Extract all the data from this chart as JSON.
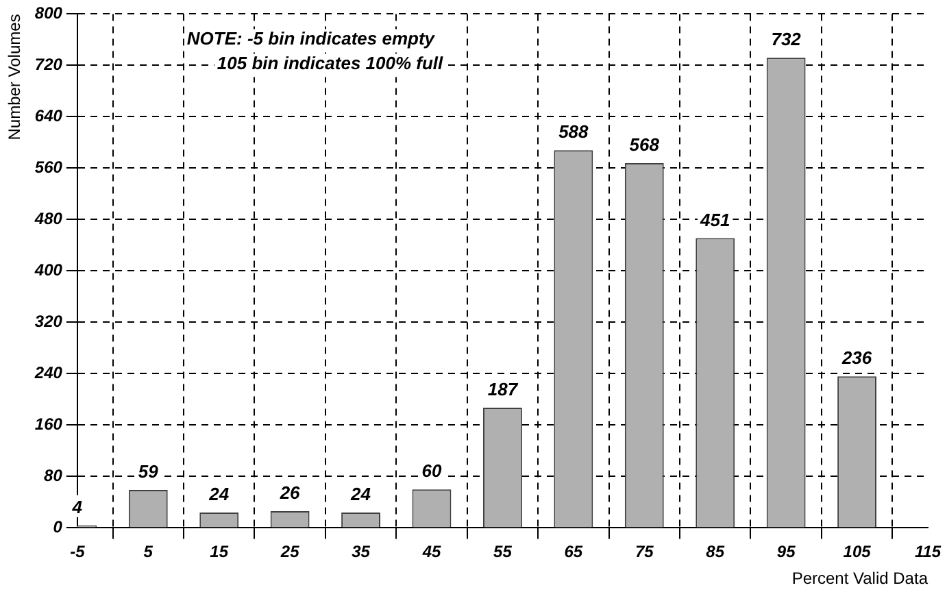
{
  "chart_data": {
    "type": "bar",
    "xlabel": "Percent Valid Data",
    "ylabel": "Number Volumes",
    "annotations": [
      "NOTE: -5 bin indicates empty",
      "105 bin indicates 100% full"
    ],
    "x": [
      -5,
      5,
      15,
      25,
      35,
      45,
      55,
      65,
      75,
      85,
      95,
      105
    ],
    "values": [
      4,
      59,
      24,
      26,
      24,
      60,
      187,
      588,
      568,
      451,
      732,
      236
    ],
    "color": "#b0b0b0",
    "xlim": [
      -5,
      115
    ],
    "xticks": [
      -5,
      5,
      15,
      25,
      35,
      45,
      55,
      65,
      75,
      85,
      95,
      105,
      115
    ],
    "ylim": [
      0,
      800
    ],
    "yticks": [
      0,
      80,
      160,
      240,
      320,
      400,
      480,
      560,
      640,
      720,
      800
    ],
    "grid": true,
    "data_labels": true,
    "legend": false
  }
}
